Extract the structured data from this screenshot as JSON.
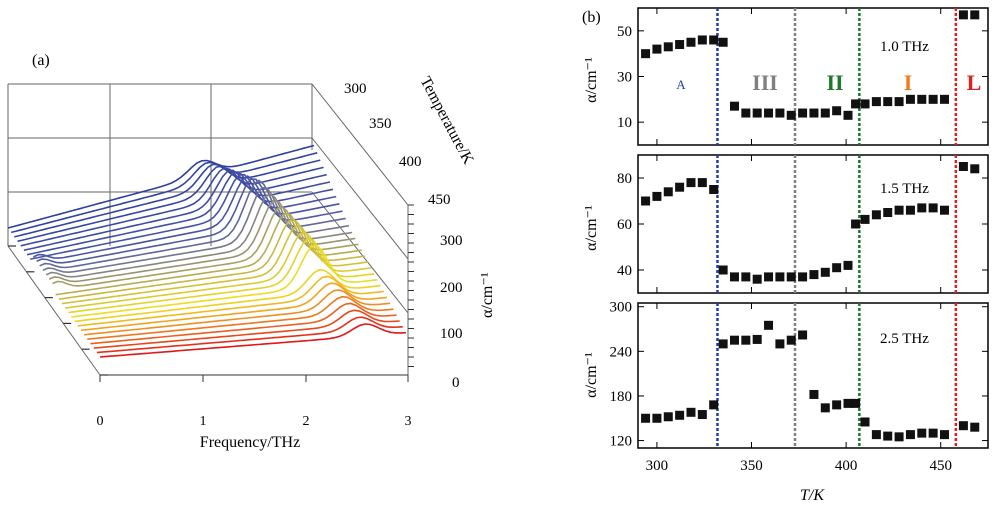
{
  "panel_a": {
    "label": "(a)",
    "x_axis_label": "Frequency/THz",
    "x_ticks": [
      "0",
      "1",
      "2",
      "3"
    ],
    "temperature_axis_label": "Temperature/K",
    "temperature_ticks": [
      "300",
      "350",
      "400",
      "450"
    ],
    "alpha_axis_label": "α/cm⁻¹",
    "alpha_ticks": [
      "0",
      "100",
      "200",
      "300"
    ]
  },
  "panel_b": {
    "label": "(b)",
    "x_axis_label": "T/K",
    "phase_labels": [
      {
        "text": "A",
        "color": "#1f3fa8"
      },
      {
        "text": "III",
        "color": "#808080"
      },
      {
        "text": "II",
        "color": "#1a7a2a"
      },
      {
        "text": "I",
        "color": "#f07a1a"
      },
      {
        "text": "L",
        "color": "#e02020"
      }
    ],
    "transitions": [
      {
        "T": 332,
        "color": "#1f3fa8"
      },
      {
        "T": 373,
        "color": "#808080"
      },
      {
        "T": 407,
        "color": "#1a7a2a"
      },
      {
        "T": 458,
        "color": "#e02020"
      }
    ]
  },
  "chart_data": [
    {
      "type": "line",
      "title": "",
      "xlabel": "Frequency/THz",
      "ylabel": "α/cm⁻¹",
      "zlabel": "Temperature/K",
      "xlim": [
        0,
        3
      ],
      "ylim": [
        0,
        300
      ],
      "zlim": [
        300,
        450
      ],
      "note_series": "one absorption spectrum per temperature, colored blue (low T) through gray, yellow to red (high T)"
    },
    {
      "type": "scatter",
      "subplot": "1.0 THz",
      "annotation": "1.0 THz",
      "ylabel": "α/cm⁻¹",
      "xlim": [
        290,
        475
      ],
      "ylim": [
        0,
        60
      ],
      "yticks": [
        "10",
        "30",
        "50"
      ],
      "x": [
        294,
        300,
        306,
        312,
        318,
        324,
        330,
        335,
        341,
        347,
        353,
        359,
        365,
        371,
        377,
        383,
        389,
        395,
        401,
        405,
        410,
        416,
        422,
        428,
        434,
        440,
        446,
        452,
        462,
        468
      ],
      "y": [
        40,
        42,
        43,
        44,
        45,
        46,
        46,
        45,
        17,
        14,
        14,
        14,
        14,
        13,
        14,
        14,
        14,
        15,
        13,
        18,
        18,
        19,
        19,
        19,
        20,
        20,
        20,
        20,
        57,
        57
      ]
    },
    {
      "type": "scatter",
      "subplot": "1.5 THz",
      "annotation": "1.5 THz",
      "ylabel": "α/cm⁻¹",
      "xlim": [
        290,
        475
      ],
      "ylim": [
        30,
        90
      ],
      "yticks": [
        "40",
        "60",
        "80"
      ],
      "x": [
        294,
        300,
        306,
        312,
        318,
        324,
        330,
        335,
        341,
        347,
        353,
        359,
        365,
        371,
        377,
        383,
        389,
        395,
        401,
        405,
        410,
        416,
        422,
        428,
        434,
        440,
        446,
        452,
        462,
        468
      ],
      "y": [
        70,
        72,
        74,
        76,
        78,
        78,
        75,
        40,
        37,
        37,
        36,
        37,
        37,
        37,
        37,
        38,
        39,
        41,
        42,
        60,
        62,
        64,
        65,
        66,
        66,
        67,
        67,
        66,
        85,
        84
      ]
    },
    {
      "type": "scatter",
      "subplot": "2.5 THz",
      "annotation": "2.5 THz",
      "ylabel": "α/cm⁻¹",
      "xlabel": "T/K",
      "xlim": [
        290,
        475
      ],
      "ylim": [
        110,
        305
      ],
      "yticks": [
        "120",
        "180",
        "240",
        "300"
      ],
      "xticks": [
        "300",
        "350",
        "400",
        "450"
      ],
      "x": [
        294,
        300,
        306,
        312,
        318,
        324,
        330,
        335,
        341,
        347,
        353,
        359,
        365,
        371,
        377,
        383,
        389,
        395,
        401,
        405,
        410,
        416,
        422,
        428,
        434,
        440,
        446,
        452,
        462,
        468
      ],
      "y": [
        150,
        150,
        152,
        154,
        158,
        155,
        168,
        250,
        255,
        255,
        256,
        275,
        250,
        255,
        262,
        182,
        164,
        168,
        170,
        170,
        145,
        128,
        126,
        125,
        128,
        130,
        130,
        128,
        140,
        138
      ]
    }
  ]
}
